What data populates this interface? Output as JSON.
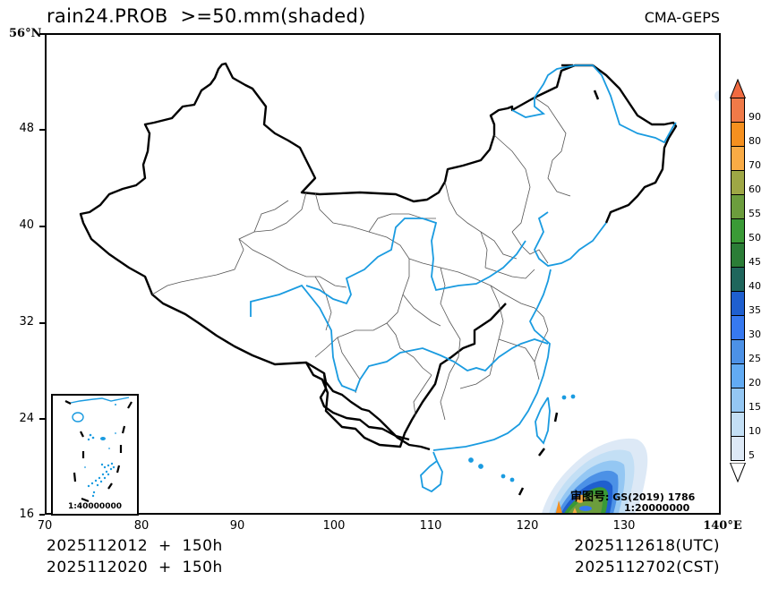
{
  "header": {
    "title": "rain24.PROB  >=50.mm(shaded)",
    "model": "CMA-GEPS"
  },
  "axes": {
    "y_ticks": [
      {
        "label": "56°N",
        "lat": 56
      },
      {
        "label": "48",
        "lat": 48
      },
      {
        "label": "40",
        "lat": 40
      },
      {
        "label": "32",
        "lat": 32
      },
      {
        "label": "24",
        "lat": 24
      },
      {
        "label": "16",
        "lat": 16
      }
    ],
    "x_ticks": [
      {
        "label": "70",
        "lon": 70
      },
      {
        "label": "80",
        "lon": 80
      },
      {
        "label": "90",
        "lon": 90
      },
      {
        "label": "100",
        "lon": 100
      },
      {
        "label": "110",
        "lon": 110
      },
      {
        "label": "120",
        "lon": 120
      },
      {
        "label": "130",
        "lon": 130
      },
      {
        "label": "140°E",
        "lon": 140
      }
    ],
    "lon_range": [
      70,
      140
    ],
    "lat_range": [
      16,
      56
    ]
  },
  "footer": {
    "init_utc": "2025112012  +  150h",
    "init_cst": "2025112020  +  150h",
    "valid_utc": "2025112618(UTC)",
    "valid_cst": "2025112702(CST)"
  },
  "inset": {
    "scale": "1:40000000"
  },
  "map_note": {
    "review_label": "审图号",
    "review_number": ": GS(2019) 1786",
    "scale": "1:20000000"
  },
  "colorbar": {
    "levels": [
      "90",
      "80",
      "70",
      "60",
      "55",
      "50",
      "45",
      "40",
      "35",
      "30",
      "25",
      "20",
      "15",
      "10",
      "5"
    ],
    "colors": [
      "#f07a48",
      "#f5901f",
      "#f9ab45",
      "#9ea745",
      "#6c9d3d",
      "#3a9a36",
      "#2b7d37",
      "#1f665c",
      "#1f5fcf",
      "#3779f0",
      "#4c91e6",
      "#62abf3",
      "#94c7f3",
      "#c3dff5",
      "#dde9f6"
    ],
    "top_triangle_color": "#f06a40",
    "bottom_triangle_color": "#ffffff"
  },
  "legend_colors": {
    "country_border": "#000000",
    "province_border": "#444444",
    "river_coast": "#1a9be0"
  }
}
